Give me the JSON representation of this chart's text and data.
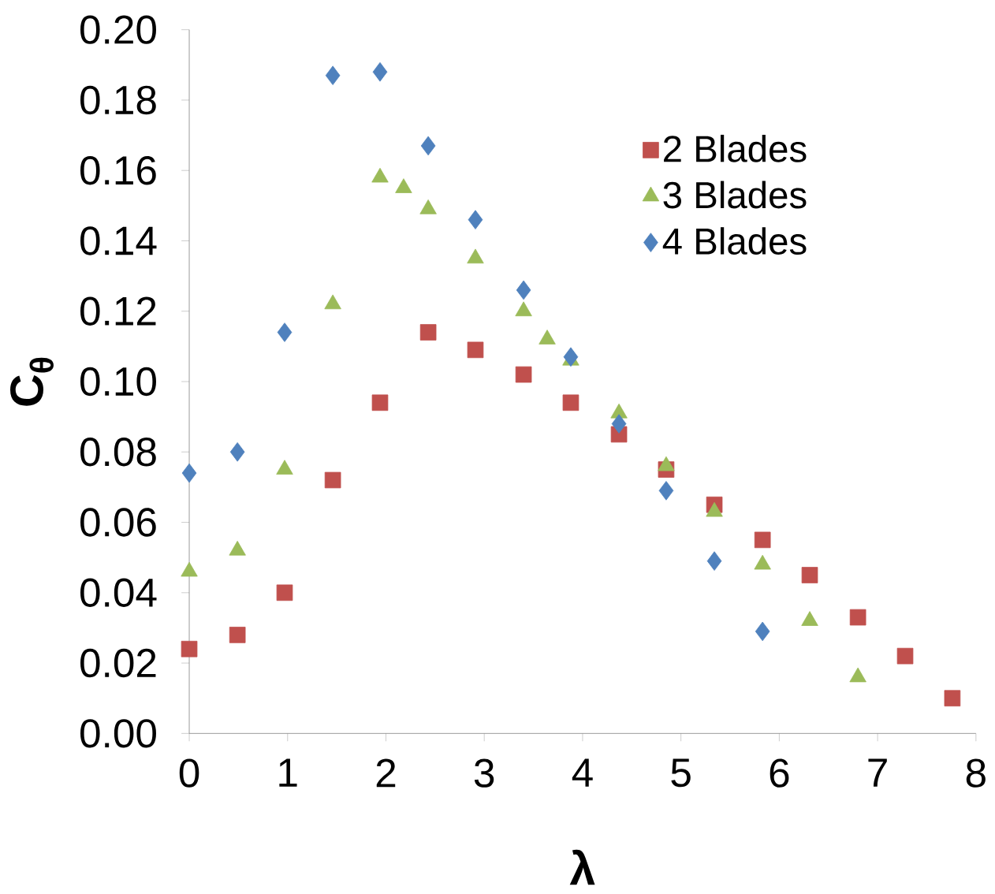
{
  "chart_data": {
    "type": "scatter",
    "xlabel": "λ",
    "ylabel": "C$_{θ}$",
    "xlim": [
      0,
      8
    ],
    "xticks": [
      0,
      1,
      2,
      3,
      4,
      5,
      6,
      7,
      8
    ],
    "ylim": [
      0,
      0.2
    ],
    "yticks": [
      {
        "value": 0,
        "label": "0.00"
      },
      {
        "value": 0.02,
        "label": "0.02"
      },
      {
        "value": 0.04,
        "label": "0.04"
      },
      {
        "value": 0.06,
        "label": "0.06"
      },
      {
        "value": 0.08,
        "label": "0.08"
      },
      {
        "value": 0.1,
        "label": "0.10"
      },
      {
        "value": 0.12,
        "label": "0.12"
      },
      {
        "value": 0.14,
        "label": "0.14"
      },
      {
        "value": 0.16,
        "label": "0.16"
      },
      {
        "value": 0.18,
        "label": "0.18"
      },
      {
        "value": 0.2,
        "label": "0.20"
      }
    ],
    "grid": false,
    "legend": "top right",
    "series": [
      {
        "name": "2 Blades",
        "color": "#c0504d",
        "marker": "square",
        "x": [
          0,
          0.49,
          0.97,
          1.46,
          1.94,
          2.43,
          2.91,
          3.4,
          3.88,
          4.37,
          4.85,
          5.34,
          5.83,
          6.31,
          6.8,
          7.28,
          7.76
        ],
        "values": [
          0.024,
          0.028,
          0.04,
          0.072,
          0.094,
          0.114,
          0.109,
          0.102,
          0.094,
          0.085,
          0.075,
          0.065,
          0.055,
          0.045,
          0.033,
          0.022,
          0.01
        ]
      },
      {
        "name": "3 Blades",
        "color": "#9bbb59",
        "marker": "triangle",
        "x": [
          0,
          0.49,
          0.97,
          1.46,
          1.94,
          2.18,
          2.43,
          2.91,
          3.4,
          3.64,
          3.88,
          4.37,
          4.85,
          5.34,
          5.83,
          6.31,
          6.8
        ],
        "values": [
          0.046,
          0.052,
          0.075,
          0.122,
          0.158,
          0.155,
          0.149,
          0.135,
          0.12,
          0.112,
          0.106,
          0.091,
          0.076,
          0.063,
          0.048,
          0.032,
          0.016
        ]
      },
      {
        "name": "4 Blades",
        "color": "#4f81bd",
        "marker": "diamond",
        "x": [
          0,
          0.49,
          0.97,
          1.46,
          1.94,
          2.43,
          2.91,
          3.4,
          3.88,
          4.37,
          4.85,
          5.34,
          5.83
        ],
        "values": [
          0.074,
          0.08,
          0.114,
          0.187,
          0.188,
          0.167,
          0.146,
          0.126,
          0.107,
          0.088,
          0.069,
          0.049,
          0.029
        ]
      }
    ]
  }
}
